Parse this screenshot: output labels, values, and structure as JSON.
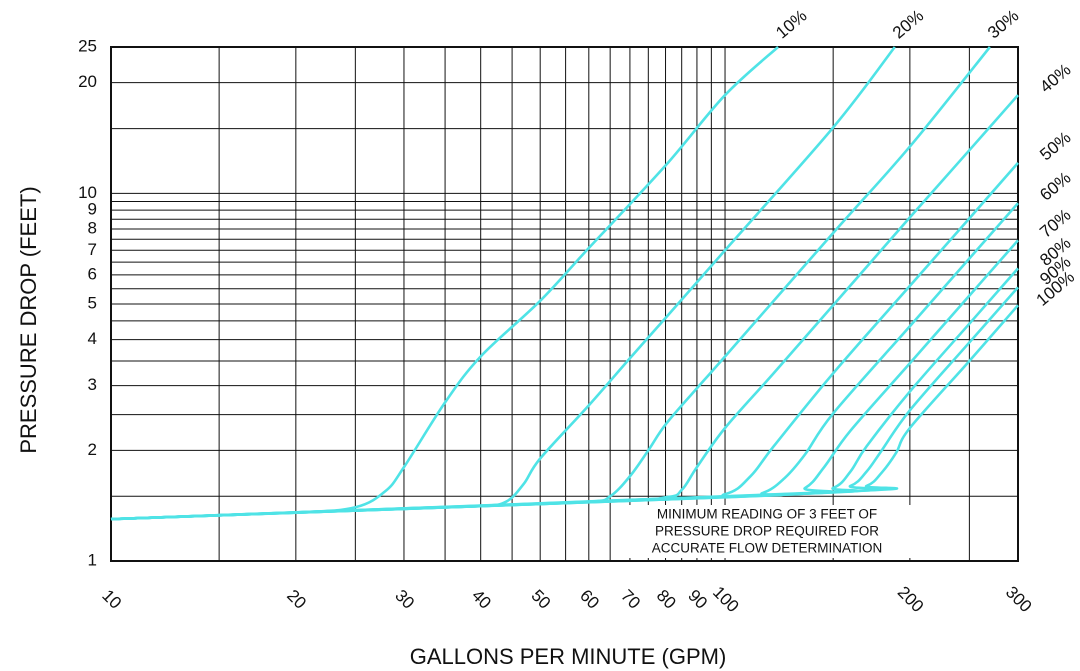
{
  "chart_data": {
    "type": "line",
    "x_label": "GALLONS PER MINUTE (GPM)",
    "y_label": "PRESSURE DROP (FEET)",
    "annotation": [
      "MINIMUM READING OF 3 FEET OF",
      "PRESSURE DROP REQUIRED FOR",
      "ACCURATE FLOW DETERMINATION"
    ],
    "xscale": "log",
    "yscale": "log",
    "grid": true,
    "xlim": [
      10,
      300
    ],
    "ylim": [
      1,
      25
    ],
    "xticks": [
      10,
      20,
      30,
      40,
      50,
      60,
      70,
      80,
      90,
      100,
      200,
      300
    ],
    "xminorticks": [
      15,
      25,
      35,
      45,
      55,
      65,
      75,
      85,
      95,
      150,
      250
    ],
    "yticks": [
      1,
      2,
      3,
      4,
      5,
      6,
      7,
      8,
      9,
      10,
      20,
      25
    ],
    "yminorticks": [
      1.5,
      2.5,
      3.5,
      4.5,
      5.5,
      6.5,
      7.5,
      8.5,
      9.5,
      15
    ],
    "series": [
      {
        "name": "10%",
        "color": "#4fe3e6",
        "x": [
          10,
          20,
          25,
          28,
          30,
          35,
          40,
          50,
          60,
          80,
          100,
          122
        ],
        "values": [
          1.3,
          1.355,
          1.4,
          1.55,
          1.8,
          2.7,
          3.6,
          5.1,
          7.1,
          11.9,
          18.5,
          25
        ]
      },
      {
        "name": "20%",
        "color": "#4fe3e6",
        "x": [
          10,
          30,
          40,
          44,
          47,
          50,
          60,
          70,
          80,
          100,
          150,
          189
        ],
        "values": [
          1.3,
          1.39,
          1.41,
          1.45,
          1.62,
          1.9,
          2.65,
          3.56,
          4.58,
          7.0,
          15.1,
          25
        ]
      },
      {
        "name": "30%",
        "color": "#4fe3e6",
        "x": [
          10,
          40,
          60,
          65,
          70,
          75,
          80,
          90,
          100,
          150,
          200,
          270
        ],
        "values": [
          1.3,
          1.41,
          1.45,
          1.5,
          1.7,
          2.0,
          2.35,
          2.95,
          3.6,
          7.8,
          13.4,
          25
        ]
      },
      {
        "name": "40%",
        "color": "#4fe3e6",
        "x": [
          10,
          60,
          80,
          85,
          90,
          100,
          120,
          150,
          200,
          250,
          300
        ],
        "values": [
          1.3,
          1.45,
          1.49,
          1.56,
          1.8,
          2.3,
          3.24,
          4.96,
          8.6,
          13.1,
          18.5
        ]
      },
      {
        "name": "50%",
        "color": "#4fe3e6",
        "x": [
          10,
          80,
          100,
          110,
          120,
          150,
          200,
          250,
          300
        ],
        "values": [
          1.3,
          1.47,
          1.52,
          1.7,
          2.05,
          3.24,
          5.6,
          8.55,
          12.1
        ]
      },
      {
        "name": "60%",
        "color": "#4fe3e6",
        "x": [
          10,
          100,
          115,
          125,
          135,
          150,
          200,
          250,
          300
        ],
        "values": [
          1.3,
          1.49,
          1.53,
          1.68,
          1.95,
          2.52,
          4.35,
          6.65,
          9.4
        ]
      },
      {
        "name": "70%",
        "color": "#4fe3e6",
        "x": [
          10,
          120,
          135,
          145,
          160,
          200,
          250,
          300
        ],
        "values": [
          1.3,
          1.51,
          1.58,
          1.8,
          2.26,
          3.45,
          5.27,
          7.45
        ]
      },
      {
        "name": "80%",
        "color": "#4fe3e6",
        "x": [
          10,
          130,
          150,
          160,
          170,
          200,
          250,
          300
        ],
        "values": [
          1.3,
          1.52,
          1.58,
          1.75,
          2.05,
          2.89,
          4.42,
          6.25
        ]
      },
      {
        "name": "90%",
        "color": "#4fe3e6",
        "x": [
          10,
          140,
          160,
          170,
          180,
          200,
          250,
          300
        ],
        "values": [
          1.3,
          1.53,
          1.6,
          1.75,
          2.0,
          2.57,
          3.93,
          5.55
        ]
      },
      {
        "name": "100%",
        "color": "#4fe3e6",
        "x": [
          10,
          150,
          170,
          180,
          190,
          200,
          250,
          300
        ],
        "values": [
          1.3,
          1.54,
          1.6,
          1.74,
          1.97,
          2.3,
          3.5,
          4.96
        ]
      }
    ]
  }
}
